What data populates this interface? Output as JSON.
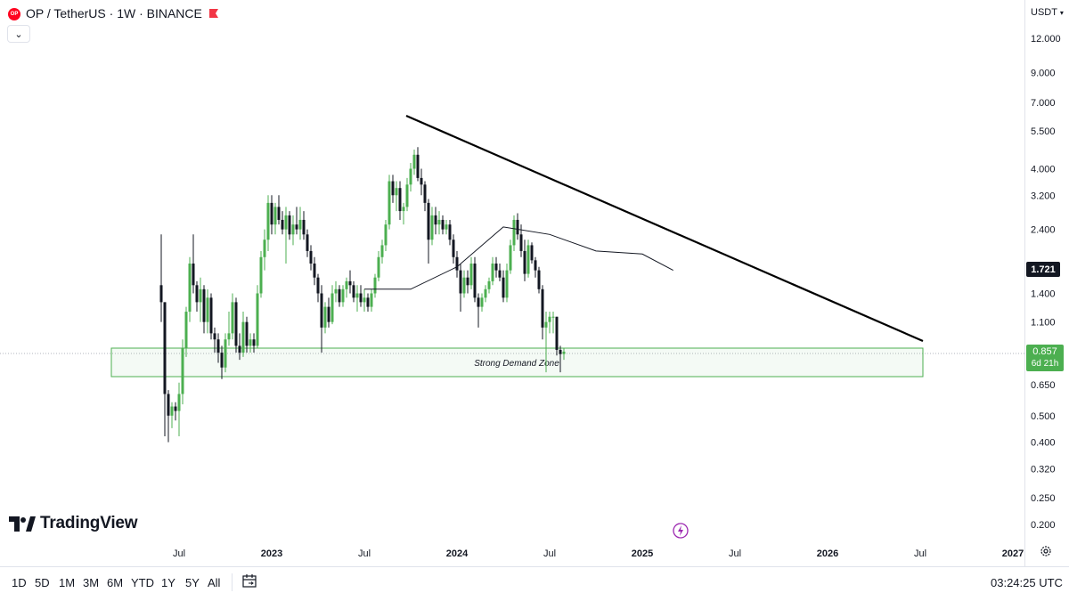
{
  "header": {
    "symbol_title": "OP / TetherUS · 1W · BINANCE",
    "logo_text": "OP",
    "collapse_icon": "chevron-down-icon",
    "currency": "USDT",
    "currency_icon": "chevron-down-icon"
  },
  "price_axis": {
    "ticks": [
      "12.000",
      "9.000",
      "7.000",
      "5.500",
      "4.000",
      "3.200",
      "2.400",
      "1.720",
      "1.400",
      "1.100",
      "0.857",
      "0.650",
      "0.500",
      "0.400",
      "0.320",
      "0.250",
      "0.200"
    ],
    "visible_ticks": [
      "12.000",
      "9.000",
      "7.000",
      "5.500",
      "4.000",
      "3.200",
      "2.400",
      "1.400",
      "1.100",
      "0.650",
      "0.500",
      "0.400",
      "0.320",
      "0.250",
      "0.200"
    ],
    "last_price_label": "1.721",
    "current_price_label": "0.857",
    "countdown_label": "6d 21h"
  },
  "time_axis": {
    "ticks": [
      "Jul",
      "2023",
      "Jul",
      "2024",
      "Jul",
      "2025",
      "Jul",
      "2026",
      "Jul",
      "2027"
    ]
  },
  "annotations": {
    "demand_zone_label": "Strong Demand Zone"
  },
  "bottom_bar": {
    "timeframes": [
      "1D",
      "5D",
      "1M",
      "3M",
      "6M",
      "YTD",
      "1Y",
      "5Y",
      "All"
    ],
    "clock": "03:24:25 UTC"
  },
  "branding": {
    "tradingview": "TradingView"
  },
  "colors": {
    "up": "#4caf50",
    "down": "#131722",
    "trendline": "#000000",
    "zone_border": "#4caf50",
    "ma": "#131722"
  },
  "chart_data": {
    "type": "candlestick",
    "title": "OP / TetherUS · 1W · BINANCE",
    "scale": "log",
    "ylim": [
      0.2,
      12.0
    ],
    "x_range": [
      "2022-05",
      "2027-01"
    ],
    "current_price": 0.857,
    "last_price_label": 1.721,
    "demand_zone": {
      "low": 0.68,
      "high": 0.92,
      "label": "Strong Demand Zone"
    },
    "trendline": [
      {
        "x": "2024-01",
        "y": 6.5
      },
      {
        "x": "2026-07",
        "y": 0.94
      }
    ],
    "ma_points": [
      {
        "x": "2023-07",
        "y": 1.45
      },
      {
        "x": "2023-10",
        "y": 1.45
      },
      {
        "x": "2024-01",
        "y": 1.75
      },
      {
        "x": "2024-04",
        "y": 2.45
      },
      {
        "x": "2024-07",
        "y": 2.3
      },
      {
        "x": "2024-10",
        "y": 2.0
      },
      {
        "x": "2025-01",
        "y": 1.95
      },
      {
        "x": "2025-03",
        "y": 1.7
      }
    ],
    "candles": [
      {
        "o": 1.5,
        "h": 2.3,
        "l": 1.1,
        "c": 1.3
      },
      {
        "o": 1.3,
        "h": 1.3,
        "l": 0.42,
        "c": 0.6
      },
      {
        "o": 0.6,
        "h": 0.62,
        "l": 0.4,
        "c": 0.5
      },
      {
        "o": 0.5,
        "h": 0.56,
        "l": 0.45,
        "c": 0.54
      },
      {
        "o": 0.54,
        "h": 0.56,
        "l": 0.48,
        "c": 0.52
      },
      {
        "o": 0.52,
        "h": 0.66,
        "l": 0.42,
        "c": 0.6
      },
      {
        "o": 0.6,
        "h": 0.95,
        "l": 0.55,
        "c": 0.88
      },
      {
        "o": 0.88,
        "h": 1.25,
        "l": 0.82,
        "c": 1.2
      },
      {
        "o": 1.2,
        "h": 1.9,
        "l": 1.1,
        "c": 1.8
      },
      {
        "o": 1.8,
        "h": 2.3,
        "l": 1.4,
        "c": 1.5
      },
      {
        "o": 1.5,
        "h": 1.55,
        "l": 1.2,
        "c": 1.3
      },
      {
        "o": 1.3,
        "h": 1.6,
        "l": 1.1,
        "c": 1.45
      },
      {
        "o": 1.45,
        "h": 1.5,
        "l": 1.0,
        "c": 1.1
      },
      {
        "o": 1.1,
        "h": 1.45,
        "l": 1.0,
        "c": 1.35
      },
      {
        "o": 1.35,
        "h": 1.4,
        "l": 0.95,
        "c": 1.0
      },
      {
        "o": 1.0,
        "h": 1.05,
        "l": 0.85,
        "c": 0.95
      },
      {
        "o": 0.95,
        "h": 1.0,
        "l": 0.78,
        "c": 0.85
      },
      {
        "o": 0.85,
        "h": 0.9,
        "l": 0.68,
        "c": 0.75
      },
      {
        "o": 0.75,
        "h": 1.0,
        "l": 0.72,
        "c": 0.95
      },
      {
        "o": 0.95,
        "h": 1.2,
        "l": 0.9,
        "c": 1.0
      },
      {
        "o": 1.0,
        "h": 1.4,
        "l": 0.95,
        "c": 1.3
      },
      {
        "o": 1.3,
        "h": 1.35,
        "l": 0.85,
        "c": 0.9
      },
      {
        "o": 0.9,
        "h": 1.0,
        "l": 0.8,
        "c": 0.85
      },
      {
        "o": 0.85,
        "h": 1.2,
        "l": 0.82,
        "c": 1.1
      },
      {
        "o": 1.1,
        "h": 1.15,
        "l": 0.85,
        "c": 0.9
      },
      {
        "o": 0.9,
        "h": 1.0,
        "l": 0.85,
        "c": 0.95
      },
      {
        "o": 0.95,
        "h": 1.0,
        "l": 0.85,
        "c": 0.9
      },
      {
        "o": 0.9,
        "h": 1.5,
        "l": 0.88,
        "c": 1.4
      },
      {
        "o": 1.4,
        "h": 2.0,
        "l": 1.35,
        "c": 1.9
      },
      {
        "o": 1.9,
        "h": 2.4,
        "l": 1.7,
        "c": 2.2
      },
      {
        "o": 2.2,
        "h": 3.2,
        "l": 2.0,
        "c": 3.0
      },
      {
        "o": 3.0,
        "h": 3.2,
        "l": 2.3,
        "c": 2.5
      },
      {
        "o": 2.5,
        "h": 3.0,
        "l": 2.3,
        "c": 2.9
      },
      {
        "o": 2.9,
        "h": 3.2,
        "l": 2.5,
        "c": 2.6
      },
      {
        "o": 2.6,
        "h": 2.8,
        "l": 2.3,
        "c": 2.4
      },
      {
        "o": 2.4,
        "h": 2.9,
        "l": 1.8,
        "c": 2.7
      },
      {
        "o": 2.7,
        "h": 2.8,
        "l": 2.2,
        "c": 2.3
      },
      {
        "o": 2.3,
        "h": 2.7,
        "l": 2.1,
        "c": 2.5
      },
      {
        "o": 2.5,
        "h": 2.9,
        "l": 2.3,
        "c": 2.4
      },
      {
        "o": 2.4,
        "h": 2.9,
        "l": 2.2,
        "c": 2.6
      },
      {
        "o": 2.6,
        "h": 2.8,
        "l": 2.2,
        "c": 2.3
      },
      {
        "o": 2.3,
        "h": 2.4,
        "l": 1.9,
        "c": 2.0
      },
      {
        "o": 2.0,
        "h": 2.1,
        "l": 1.7,
        "c": 1.8
      },
      {
        "o": 1.8,
        "h": 1.9,
        "l": 1.5,
        "c": 1.6
      },
      {
        "o": 1.6,
        "h": 1.65,
        "l": 1.3,
        "c": 1.4
      },
      {
        "o": 1.4,
        "h": 1.5,
        "l": 0.85,
        "c": 1.05
      },
      {
        "o": 1.05,
        "h": 1.3,
        "l": 1.0,
        "c": 1.25
      },
      {
        "o": 1.25,
        "h": 1.35,
        "l": 1.05,
        "c": 1.1
      },
      {
        "o": 1.1,
        "h": 1.5,
        "l": 1.08,
        "c": 1.4
      },
      {
        "o": 1.4,
        "h": 1.55,
        "l": 1.3,
        "c": 1.45
      },
      {
        "o": 1.45,
        "h": 1.5,
        "l": 1.25,
        "c": 1.3
      },
      {
        "o": 1.3,
        "h": 1.5,
        "l": 1.25,
        "c": 1.45
      },
      {
        "o": 1.45,
        "h": 1.6,
        "l": 1.35,
        "c": 1.55
      },
      {
        "o": 1.55,
        "h": 1.7,
        "l": 1.4,
        "c": 1.5
      },
      {
        "o": 1.5,
        "h": 1.55,
        "l": 1.3,
        "c": 1.35
      },
      {
        "o": 1.35,
        "h": 1.5,
        "l": 1.2,
        "c": 1.4
      },
      {
        "o": 1.4,
        "h": 1.5,
        "l": 1.25,
        "c": 1.3
      },
      {
        "o": 1.3,
        "h": 1.45,
        "l": 1.2,
        "c": 1.35
      },
      {
        "o": 1.35,
        "h": 1.4,
        "l": 1.2,
        "c": 1.25
      },
      {
        "o": 1.25,
        "h": 1.45,
        "l": 1.2,
        "c": 1.4
      },
      {
        "o": 1.4,
        "h": 1.65,
        "l": 1.35,
        "c": 1.6
      },
      {
        "o": 1.6,
        "h": 2.0,
        "l": 1.55,
        "c": 1.9
      },
      {
        "o": 1.9,
        "h": 2.2,
        "l": 1.8,
        "c": 2.1
      },
      {
        "o": 2.1,
        "h": 2.6,
        "l": 2.0,
        "c": 2.5
      },
      {
        "o": 2.5,
        "h": 3.8,
        "l": 2.4,
        "c": 3.6
      },
      {
        "o": 3.6,
        "h": 3.8,
        "l": 3.0,
        "c": 3.2
      },
      {
        "o": 3.2,
        "h": 3.6,
        "l": 2.8,
        "c": 3.4
      },
      {
        "o": 3.4,
        "h": 3.6,
        "l": 2.6,
        "c": 2.8
      },
      {
        "o": 2.8,
        "h": 3.0,
        "l": 2.5,
        "c": 2.9
      },
      {
        "o": 2.9,
        "h": 3.7,
        "l": 2.8,
        "c": 3.5
      },
      {
        "o": 3.5,
        "h": 4.2,
        "l": 3.3,
        "c": 4.0
      },
      {
        "o": 4.0,
        "h": 4.7,
        "l": 3.8,
        "c": 4.5
      },
      {
        "o": 4.5,
        "h": 4.8,
        "l": 3.6,
        "c": 3.7
      },
      {
        "o": 3.7,
        "h": 4.0,
        "l": 3.2,
        "c": 3.5
      },
      {
        "o": 3.5,
        "h": 3.6,
        "l": 2.8,
        "c": 3.0
      },
      {
        "o": 3.0,
        "h": 3.1,
        "l": 1.8,
        "c": 2.2
      },
      {
        "o": 2.2,
        "h": 2.9,
        "l": 2.1,
        "c": 2.7
      },
      {
        "o": 2.7,
        "h": 2.9,
        "l": 2.3,
        "c": 2.5
      },
      {
        "o": 2.5,
        "h": 2.8,
        "l": 2.3,
        "c": 2.6
      },
      {
        "o": 2.6,
        "h": 2.7,
        "l": 2.3,
        "c": 2.4
      },
      {
        "o": 2.4,
        "h": 2.6,
        "l": 2.3,
        "c": 2.5
      },
      {
        "o": 2.5,
        "h": 2.6,
        "l": 2.1,
        "c": 2.2
      },
      {
        "o": 2.2,
        "h": 2.3,
        "l": 1.8,
        "c": 1.9
      },
      {
        "o": 1.9,
        "h": 2.0,
        "l": 1.6,
        "c": 1.7
      },
      {
        "o": 1.7,
        "h": 1.8,
        "l": 1.2,
        "c": 1.4
      },
      {
        "o": 1.4,
        "h": 1.7,
        "l": 1.35,
        "c": 1.6
      },
      {
        "o": 1.6,
        "h": 1.7,
        "l": 1.4,
        "c": 1.5
      },
      {
        "o": 1.5,
        "h": 1.9,
        "l": 1.45,
        "c": 1.8
      },
      {
        "o": 1.8,
        "h": 1.9,
        "l": 1.3,
        "c": 1.35
      },
      {
        "o": 1.35,
        "h": 1.4,
        "l": 1.05,
        "c": 1.25
      },
      {
        "o": 1.25,
        "h": 1.4,
        "l": 1.2,
        "c": 1.35
      },
      {
        "o": 1.35,
        "h": 1.5,
        "l": 1.3,
        "c": 1.45
      },
      {
        "o": 1.45,
        "h": 1.6,
        "l": 1.4,
        "c": 1.55
      },
      {
        "o": 1.55,
        "h": 1.9,
        "l": 1.5,
        "c": 1.8
      },
      {
        "o": 1.8,
        "h": 1.9,
        "l": 1.6,
        "c": 1.7
      },
      {
        "o": 1.7,
        "h": 1.8,
        "l": 1.55,
        "c": 1.6
      },
      {
        "o": 1.6,
        "h": 1.7,
        "l": 1.3,
        "c": 1.35
      },
      {
        "o": 1.35,
        "h": 1.8,
        "l": 1.3,
        "c": 1.7
      },
      {
        "o": 1.7,
        "h": 2.2,
        "l": 1.65,
        "c": 2.1
      },
      {
        "o": 2.1,
        "h": 2.7,
        "l": 2.0,
        "c": 2.6
      },
      {
        "o": 2.6,
        "h": 2.75,
        "l": 2.2,
        "c": 2.3
      },
      {
        "o": 2.3,
        "h": 2.5,
        "l": 1.9,
        "c": 2.0
      },
      {
        "o": 2.0,
        "h": 2.2,
        "l": 1.55,
        "c": 1.65
      },
      {
        "o": 1.65,
        "h": 2.2,
        "l": 1.6,
        "c": 2.1
      },
      {
        "o": 2.1,
        "h": 2.15,
        "l": 1.8,
        "c": 1.85
      },
      {
        "o": 1.85,
        "h": 1.9,
        "l": 1.6,
        "c": 1.7
      },
      {
        "o": 1.7,
        "h": 1.75,
        "l": 1.4,
        "c": 1.45
      },
      {
        "o": 1.45,
        "h": 1.5,
        "l": 0.95,
        "c": 1.05
      },
      {
        "o": 1.05,
        "h": 1.2,
        "l": 0.72,
        "c": 1.1
      },
      {
        "o": 1.1,
        "h": 1.2,
        "l": 1.0,
        "c": 1.15
      },
      {
        "o": 1.15,
        "h": 1.2,
        "l": 1.0,
        "c": 1.15
      },
      {
        "o": 1.15,
        "h": 1.15,
        "l": 0.83,
        "c": 0.87
      },
      {
        "o": 0.87,
        "h": 0.9,
        "l": 0.72,
        "c": 0.84
      },
      {
        "o": 0.84,
        "h": 0.88,
        "l": 0.8,
        "c": 0.857
      }
    ]
  }
}
